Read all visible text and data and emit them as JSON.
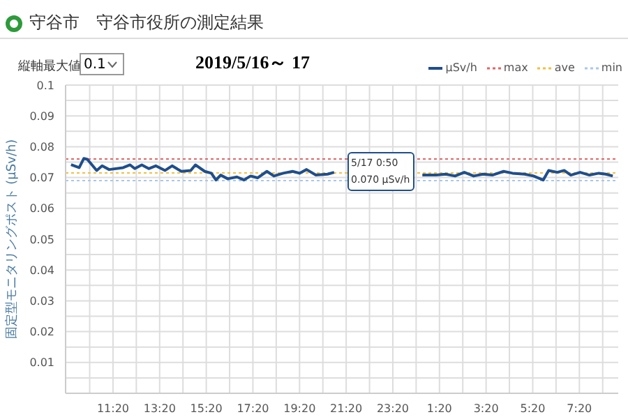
{
  "chart_data": {
    "type": "line",
    "title": "2019/5/16～ 17",
    "subtitle": "守谷市　守谷市役所の測定結果",
    "ylabel": "固定型モニタリングポスト (μSv/h)",
    "annotations": [
      "縦軸最大値",
      "0.1",
      {
        "text": "5/17 0:50\n0.070 μSv/h",
        "x": "2019-05-17T00:50",
        "y": 0.07
      }
    ],
    "xlim": [
      "2019-05-16T09:18",
      "2019-05-17T09:00"
    ],
    "xticks": [
      {
        "value": "2019-05-16T10:20",
        "label": null
      },
      {
        "value": "2019-05-16T11:20",
        "label": "11:20"
      },
      {
        "value": "2019-05-16T12:20",
        "label": null
      },
      {
        "value": "2019-05-16T13:20",
        "label": "13:20"
      },
      {
        "value": "2019-05-16T14:20",
        "label": null
      },
      {
        "value": "2019-05-16T15:20",
        "label": "15:20"
      },
      {
        "value": "2019-05-16T16:20",
        "label": null
      },
      {
        "value": "2019-05-16T17:20",
        "label": "17:20"
      },
      {
        "value": "2019-05-16T18:20",
        "label": null
      },
      {
        "value": "2019-05-16T19:20",
        "label": "19:20"
      },
      {
        "value": "2019-05-16T20:20",
        "label": null
      },
      {
        "value": "2019-05-16T21:20",
        "label": "21:20"
      },
      {
        "value": "2019-05-16T22:20",
        "label": null
      },
      {
        "value": "2019-05-16T23:20",
        "label": "23:20"
      },
      {
        "value": "2019-05-17T00:20",
        "label": null
      },
      {
        "value": "2019-05-17T01:20",
        "label": "1:20"
      },
      {
        "value": "2019-05-17T02:20",
        "label": null
      },
      {
        "value": "2019-05-17T03:20",
        "label": "3:20"
      },
      {
        "value": "2019-05-17T04:20",
        "label": null
      },
      {
        "value": "2019-05-17T05:20",
        "label": "5:20"
      },
      {
        "value": "2019-05-17T06:20",
        "label": null
      },
      {
        "value": "2019-05-17T07:20",
        "label": "7:20"
      },
      {
        "value": "2019-05-17T08:20",
        "label": null
      }
    ],
    "ylim": [
      0,
      0.1
    ],
    "yticks": [
      {
        "value": 0,
        "label": null
      },
      {
        "value": 0.005,
        "label": null
      },
      0.01,
      {
        "value": 0.015,
        "label": null
      },
      0.02,
      {
        "value": 0.025,
        "label": null
      },
      0.03,
      {
        "value": 0.035,
        "label": null
      },
      0.04,
      {
        "value": 0.045,
        "label": null
      },
      0.05,
      {
        "value": 0.055,
        "label": null
      },
      0.06,
      {
        "value": 0.065,
        "label": null
      },
      0.07,
      {
        "value": 0.075,
        "label": null
      },
      0.08,
      {
        "value": 0.085,
        "label": null
      },
      0.09,
      {
        "value": 0.095,
        "label": null
      },
      0.1
    ],
    "grid": true,
    "legend": "top right",
    "marker": "none",
    "line_style": "solid",
    "series": [
      {
        "name": "μSv/h",
        "color": "#1f4e8c",
        "x": [
          "2019-05-16T09:32",
          "2019-05-16T09:53",
          "2019-05-16T10:05",
          "2019-05-16T10:14",
          "2019-05-16T10:38",
          "2019-05-16T10:52",
          "2019-05-16T11:10",
          "2019-05-16T11:46",
          "2019-05-16T12:04",
          "2019-05-16T12:16",
          "2019-05-16T12:34",
          "2019-05-16T12:52",
          "2019-05-16T13:10",
          "2019-05-16T13:34",
          "2019-05-16T13:52",
          "2019-05-16T14:16",
          "2019-05-16T14:40",
          "2019-05-16T14:52",
          "2019-05-16T15:16",
          "2019-05-16T15:33",
          "2019-05-16T15:45",
          "2019-05-16T15:57",
          "2019-05-16T16:15",
          "2019-05-16T16:39",
          "2019-05-16T16:57",
          "2019-05-16T17:14",
          "2019-05-16T17:32",
          "2019-05-16T17:56",
          "2019-05-16T18:14",
          "2019-05-16T18:38",
          "2019-05-16T19:02",
          "2019-05-16T19:20",
          "2019-05-16T19:38",
          "2019-05-16T20:02",
          "2019-05-16T20:32",
          "2019-05-16T20:49",
          "2019-05-16T21:06",
          "2019-05-17T00:36",
          "2019-05-17T01:12",
          "2019-05-17T01:36",
          "2019-05-17T02:00",
          "2019-05-17T02:24",
          "2019-05-17T02:48",
          "2019-05-17T03:12",
          "2019-05-17T03:36",
          "2019-05-17T04:05",
          "2019-05-17T04:28",
          "2019-05-17T04:59",
          "2019-05-17T05:22",
          "2019-05-17T05:47",
          "2019-05-17T06:01",
          "2019-05-17T06:23",
          "2019-05-17T06:41",
          "2019-05-17T06:58",
          "2019-05-17T07:22",
          "2019-05-17T07:46",
          "2019-05-17T08:10",
          "2019-05-17T08:28",
          "2019-05-17T08:46"
        ],
        "values": [
          0.0742,
          0.0732,
          0.0762,
          0.0759,
          0.0723,
          0.0738,
          0.0726,
          0.0732,
          0.0741,
          0.0729,
          0.0741,
          0.0729,
          0.0738,
          0.0723,
          0.0738,
          0.072,
          0.0723,
          0.0741,
          0.072,
          0.0714,
          0.0692,
          0.0708,
          0.0696,
          0.0702,
          0.0692,
          0.0705,
          0.0699,
          0.072,
          0.0705,
          0.0714,
          0.072,
          0.0714,
          0.0726,
          0.0708,
          0.0711,
          0.0717,
          null,
          0.0708,
          0.0708,
          0.0711,
          0.0705,
          0.0717,
          0.0705,
          0.0711,
          0.0708,
          0.072,
          0.0714,
          0.0711,
          0.0705,
          0.0692,
          0.0723,
          0.0717,
          0.0723,
          0.0708,
          0.0717,
          0.0708,
          0.0714,
          0.0711,
          0.0705
        ]
      }
    ],
    "ref_lines": [
      {
        "axis": "y",
        "value": 0.076,
        "label": "max",
        "color": "#e06666",
        "line_style": "dotted"
      },
      {
        "axis": "y",
        "value": 0.0715,
        "label": "ave",
        "color": "#f0c040",
        "line_style": "dotted"
      },
      {
        "axis": "y",
        "value": 0.069,
        "label": "min",
        "color": "#a8c8e8",
        "line_style": "dotted"
      }
    ]
  }
}
